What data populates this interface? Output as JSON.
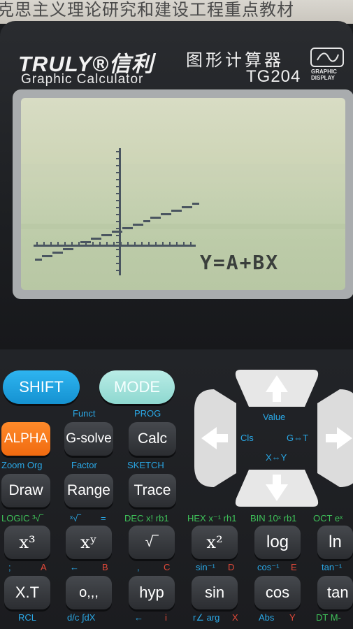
{
  "background_text": "克思主义理论研究和建设工程重点教材",
  "calculator": {
    "brand": "TRULY®信利",
    "subtitle": "Graphic Calculator",
    "cn_title": "图形计算器",
    "model": "TG204",
    "display_label_1": "GRAPHIC",
    "display_label_2": "DISPLAY"
  },
  "screen": {
    "equation": "Y=A+BX",
    "line_intercept": 0.5,
    "line_slope": 0.35
  },
  "keys": {
    "shift": "SHIFT",
    "mode": "MODE",
    "alpha": "ALPHA",
    "gsolve": "G-solve",
    "calc": "Calc",
    "draw": "Draw",
    "range": "Range",
    "trace": "Trace",
    "x3": "x³",
    "xy": "xʸ",
    "root": "√‾",
    "x2": "x²",
    "log": "log",
    "ln": "ln",
    "xt": "X.T",
    "dms": "o,,,",
    "hyp": "hyp",
    "sin": "sin",
    "cos": "cos",
    "tan": "tan"
  },
  "labels": {
    "funct": "Funct",
    "prog": "PROG",
    "zoom_org": "Zoom Org",
    "factor": "Factor",
    "sketch": "SKETCH",
    "logic": "LOGIC ³√‾",
    "xroot": "ˣ√‾",
    "eq": "=",
    "dec": "DEC x! rb1",
    "hex": "HEX x⁻¹ rh1",
    "bin": "BIN 10ˣ rb1",
    "oct": "OCT eˣ",
    "semi": ";",
    "a": "A",
    "arrow_b": "←",
    "b": "B",
    "comma": ",",
    "c": "C",
    "sin_inv": "sin⁻¹",
    "d": "D",
    "cos_inv": "cos⁻¹",
    "e": "E",
    "tan_inv": "tan⁻¹",
    "rcl": "RCL",
    "dc": "d/c ∫dX",
    "arrow_i": "←",
    "i": "i",
    "rarg": "r∠ arg",
    "x": "X",
    "abs": "Abs",
    "y": "Y",
    "dt": "DT M-"
  },
  "dpad": {
    "value": "Value",
    "cls": "Cls",
    "gt": "G⇔T",
    "xy": "X⇔Y"
  }
}
